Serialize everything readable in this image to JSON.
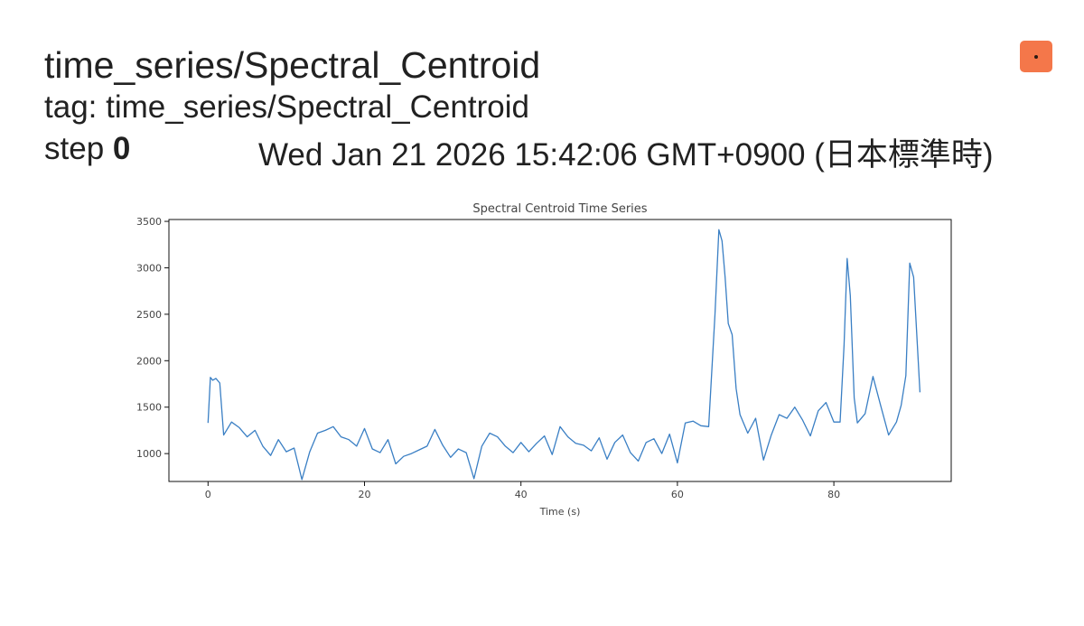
{
  "header": {
    "title": "time_series/Spectral_Centroid",
    "tag_label": "tag: time_series/Spectral_Centroid",
    "step_label": "step",
    "step_value": "0",
    "timestamp": "Wed Jan 21 2026 15:42:06 GMT+0900 (日本標準時)"
  },
  "menu_button": {
    "icon": "more-options-icon",
    "color": "#f4774a"
  },
  "chart_data": {
    "type": "line",
    "title": "Spectral Centroid Time Series",
    "xlabel": "Time (s)",
    "ylabel": "",
    "xlim": [
      -5,
      95
    ],
    "ylim": [
      700,
      3520
    ],
    "xticks": [
      0,
      20,
      40,
      60,
      80
    ],
    "yticks": [
      1000,
      1500,
      2000,
      2500,
      3000,
      3500
    ],
    "line_color": "#3a7fc4",
    "series": [
      {
        "x": [
          0,
          0.3,
          0.6,
          1.0,
          1.5,
          2,
          3,
          4,
          5,
          6,
          7,
          8,
          9,
          10,
          11,
          12,
          13,
          14,
          15,
          16,
          17,
          18,
          19,
          20,
          21,
          22,
          23,
          24,
          25,
          26,
          27,
          28,
          29,
          30,
          31,
          32,
          33,
          34,
          35,
          36,
          37,
          38,
          39,
          40,
          41,
          42,
          43,
          44,
          45,
          46,
          47,
          48,
          49,
          50,
          51,
          52,
          53,
          54,
          55,
          56,
          57,
          58,
          59,
          60,
          61,
          62,
          63,
          64,
          64.8,
          65.3,
          65.7,
          66.1,
          66.5,
          67,
          67.5,
          68,
          69,
          70,
          71,
          72,
          73,
          74,
          75,
          76,
          77,
          78,
          79,
          80,
          80.8,
          81.3,
          81.7,
          82.1,
          82.6,
          83,
          84,
          85,
          86,
          87,
          88,
          88.6,
          89.2,
          89.7,
          90.2,
          91
        ],
        "y": [
          1330,
          1820,
          1790,
          1810,
          1760,
          1200,
          1340,
          1280,
          1180,
          1250,
          1080,
          980,
          1150,
          1020,
          1060,
          720,
          1020,
          1220,
          1250,
          1290,
          1180,
          1150,
          1080,
          1270,
          1050,
          1010,
          1150,
          890,
          970,
          1000,
          1040,
          1080,
          1260,
          1090,
          960,
          1050,
          1010,
          730,
          1080,
          1220,
          1180,
          1080,
          1010,
          1120,
          1020,
          1110,
          1190,
          990,
          1290,
          1180,
          1110,
          1090,
          1030,
          1170,
          940,
          1120,
          1200,
          1010,
          920,
          1120,
          1160,
          1000,
          1210,
          900,
          1330,
          1350,
          1300,
          1290,
          2500,
          3410,
          3290,
          2900,
          2400,
          2280,
          1700,
          1420,
          1220,
          1380,
          930,
          1200,
          1420,
          1380,
          1500,
          1360,
          1190,
          1460,
          1550,
          1340,
          1340,
          2170,
          3100,
          2700,
          1600,
          1330,
          1430,
          1830,
          1510,
          1200,
          1340,
          1520,
          1840,
          3050,
          2900,
          1660
        ]
      }
    ]
  }
}
